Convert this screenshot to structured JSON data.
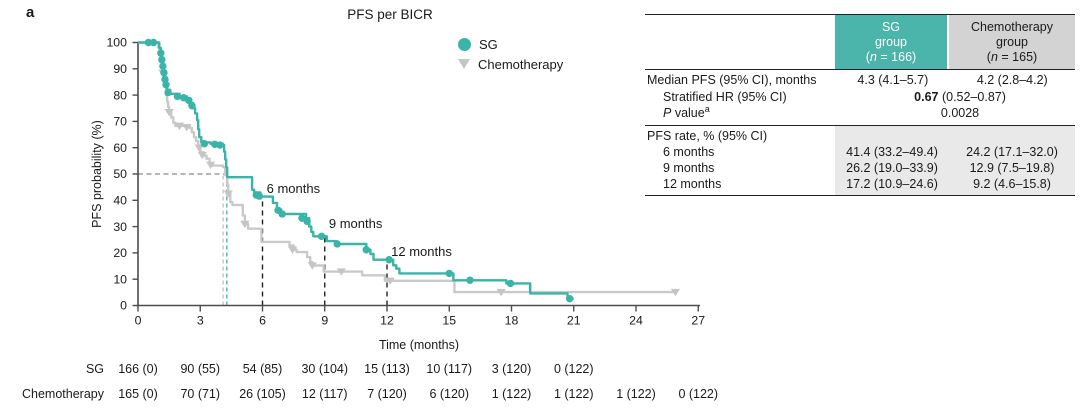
{
  "figure": {
    "panel_label": "a",
    "title": "PFS per BICR"
  },
  "legend": {
    "sg": "SG",
    "chemo": "Chemotherapy"
  },
  "axes": {
    "y_label": "PFS probability (%)",
    "x_label": "Time (months)"
  },
  "stats_table": {
    "header": {
      "sg": {
        "name": "SG",
        "group": "group",
        "n_open": "(",
        "n_italic": "n",
        "n_rest": " = 166)"
      },
      "chemo": {
        "name": "Chemotherapy",
        "group": "group",
        "n_open": "(",
        "n_italic": "n",
        "n_rest": " = 165)"
      }
    },
    "median_row": {
      "label": "Median PFS (95% CI), months",
      "sg": "4.3 (4.1–5.7)",
      "chemo": "4.2 (2.8–4.2)"
    },
    "hr_row": {
      "label": "Stratified HR (95% CI)",
      "value_bold": "0.67",
      "value_rest": " (0.52–0.87)"
    },
    "p_row": {
      "label_italic": "P",
      "label_rest": " value",
      "label_sup": "a",
      "value": "0.0028"
    },
    "rate_section": {
      "label": "PFS rate, % (95% CI)",
      "rows": [
        {
          "label": "6 months",
          "sg": "41.4 (33.2–49.4)",
          "chemo": "24.2 (17.1–32.0)"
        },
        {
          "label": "9 months",
          "sg": "26.2 (19.0–33.9)",
          "chemo": "12.9 (7.5–19.8)"
        },
        {
          "label": "12 months",
          "sg": "17.2 (10.9–24.6)",
          "chemo": "9.2 (4.6–15.8)"
        }
      ]
    }
  },
  "at_risk": {
    "sg_label": "SG",
    "chemo_label": "Chemotherapy",
    "sg": [
      "166 (0)",
      "90 (55)",
      "54 (85)",
      "30 (104)",
      "15 (113)",
      "10 (117)",
      "3 (120)",
      "0 (122)"
    ],
    "chemo": [
      "165 (0)",
      "70 (71)",
      "26 (105)",
      "12 (117)",
      "7 (120)",
      "6 (120)",
      "1 (122)",
      "1 (122)",
      "1 (122)",
      "0 (122)"
    ]
  },
  "chart_data": {
    "type": "line",
    "subtype": "kaplan-meier-step",
    "title": "PFS per BICR",
    "xlabel": "Time (months)",
    "ylabel": "PFS probability (%)",
    "xlim": [
      0,
      27
    ],
    "ylim": [
      0,
      100
    ],
    "xticks": [
      0,
      3,
      6,
      9,
      12,
      15,
      18,
      21,
      24,
      27
    ],
    "yticks": [
      0,
      10,
      20,
      30,
      40,
      50,
      60,
      70,
      80,
      90,
      100
    ],
    "grid": false,
    "legend_position": "top-right-inside",
    "series": [
      {
        "name": "Chemotherapy",
        "color": "#c9c9c9",
        "marker": "triangle-down",
        "marker_color": "#c5c5c5",
        "median_months": 4.2,
        "steps": [
          [
            0,
            100
          ],
          [
            0.95,
            100
          ],
          [
            1.05,
            97
          ],
          [
            1.1,
            94
          ],
          [
            1.15,
            91
          ],
          [
            1.2,
            88.5
          ],
          [
            1.25,
            86
          ],
          [
            1.3,
            83
          ],
          [
            1.35,
            80
          ],
          [
            1.4,
            77.5
          ],
          [
            1.45,
            75.5
          ],
          [
            1.5,
            73.5
          ],
          [
            1.6,
            71.5
          ],
          [
            1.7,
            69.5
          ],
          [
            1.8,
            68.3
          ],
          [
            2.5,
            67.5
          ],
          [
            2.6,
            65.9
          ],
          [
            2.7,
            64
          ],
          [
            2.8,
            62.5
          ],
          [
            2.9,
            60.8
          ],
          [
            3.0,
            58.3
          ],
          [
            3.15,
            57
          ],
          [
            3.3,
            55.8
          ],
          [
            3.45,
            53.9
          ],
          [
            3.6,
            53.2
          ],
          [
            4.1,
            52.6
          ],
          [
            4.2,
            49.5
          ],
          [
            4.3,
            46
          ],
          [
            4.35,
            42.5
          ],
          [
            4.45,
            39.3
          ],
          [
            4.55,
            38.2
          ],
          [
            5.05,
            34.2
          ],
          [
            5.15,
            31
          ],
          [
            5.3,
            29.2
          ],
          [
            5.95,
            24.2
          ],
          [
            7.3,
            22.8
          ],
          [
            7.5,
            21.2
          ],
          [
            7.65,
            20.3
          ],
          [
            8.15,
            18.4
          ],
          [
            8.3,
            16.5
          ],
          [
            8.4,
            15.2
          ],
          [
            8.95,
            12.9
          ],
          [
            10.8,
            11.5
          ],
          [
            11.9,
            9.4
          ],
          [
            15.25,
            5.1
          ],
          [
            25.9,
            5.1
          ]
        ],
        "censor_marks": [
          [
            1.2,
            88.5
          ],
          [
            1.5,
            73.5
          ],
          [
            2.0,
            68.3
          ],
          [
            2.35,
            67.8
          ],
          [
            2.95,
            60
          ],
          [
            3.1,
            57.2
          ],
          [
            3.5,
            53.5
          ],
          [
            4.35,
            42.5
          ],
          [
            5.15,
            31
          ],
          [
            7.45,
            21.2
          ],
          [
            8.4,
            15.2
          ],
          [
            9.8,
            12.9
          ],
          [
            12.15,
            9.4
          ],
          [
            17.5,
            5.1
          ],
          [
            25.9,
            5.1
          ]
        ]
      },
      {
        "name": "SG",
        "color": "#3ab3a8",
        "marker": "circle",
        "marker_color": "#3ab3a8",
        "median_months": 4.3,
        "steps": [
          [
            0,
            100
          ],
          [
            0.9,
            100
          ],
          [
            1.0,
            98
          ],
          [
            1.1,
            96
          ],
          [
            1.15,
            93.5
          ],
          [
            1.2,
            91
          ],
          [
            1.25,
            88.5
          ],
          [
            1.3,
            86
          ],
          [
            1.35,
            84
          ],
          [
            1.4,
            82
          ],
          [
            1.55,
            80.5
          ],
          [
            2.0,
            79.5
          ],
          [
            2.35,
            78.5
          ],
          [
            2.55,
            77
          ],
          [
            2.65,
            75
          ],
          [
            2.75,
            73
          ],
          [
            2.85,
            70.5
          ],
          [
            2.9,
            67
          ],
          [
            2.95,
            64
          ],
          [
            3.05,
            62
          ],
          [
            3.5,
            61.5
          ],
          [
            4.1,
            61
          ],
          [
            4.15,
            58.5
          ],
          [
            4.2,
            55.5
          ],
          [
            4.25,
            52.5
          ],
          [
            4.3,
            48.8
          ],
          [
            5.5,
            44
          ],
          [
            5.6,
            43
          ],
          [
            5.9,
            41.8
          ],
          [
            5.97,
            41.4
          ],
          [
            6.5,
            39
          ],
          [
            6.7,
            36.5
          ],
          [
            6.9,
            34.8
          ],
          [
            8.1,
            33.2
          ],
          [
            8.25,
            30
          ],
          [
            8.35,
            28
          ],
          [
            8.45,
            26.3
          ],
          [
            9.1,
            24.5
          ],
          [
            9.55,
            23.4
          ],
          [
            11.0,
            21.2
          ],
          [
            11.2,
            19.6
          ],
          [
            11.35,
            17.4
          ],
          [
            12.3,
            15.3
          ],
          [
            12.45,
            14
          ],
          [
            12.6,
            12.2
          ],
          [
            15.2,
            9.6
          ],
          [
            17.75,
            8.4
          ],
          [
            18.9,
            4.6
          ],
          [
            20.7,
            2.6
          ],
          [
            21,
            2.6
          ]
        ],
        "censor_marks": [
          [
            0.5,
            100
          ],
          [
            0.75,
            100
          ],
          [
            1.1,
            96
          ],
          [
            1.15,
            93.5
          ],
          [
            1.2,
            91
          ],
          [
            1.25,
            88.5
          ],
          [
            1.3,
            86
          ],
          [
            1.35,
            84
          ],
          [
            1.45,
            81
          ],
          [
            1.9,
            79.5
          ],
          [
            2.2,
            79
          ],
          [
            2.45,
            78
          ],
          [
            2.6,
            76
          ],
          [
            3.2,
            61.5
          ],
          [
            3.7,
            61.3
          ],
          [
            3.95,
            61
          ],
          [
            5.7,
            42
          ],
          [
            5.85,
            41.6
          ],
          [
            6.75,
            36.2
          ],
          [
            6.95,
            34.8
          ],
          [
            7.9,
            33.2
          ],
          [
            8.15,
            32
          ],
          [
            8.85,
            26.3
          ],
          [
            9.6,
            23.4
          ],
          [
            11.0,
            21.2
          ],
          [
            12.1,
            17.4
          ],
          [
            15.0,
            12.2
          ],
          [
            16.0,
            9.6
          ],
          [
            17.95,
            8.4
          ],
          [
            20.8,
            2.6
          ]
        ]
      }
    ],
    "median_reference": {
      "v": 50,
      "sg_t": 4.28,
      "chemo_t": 4.1
    },
    "landmarks": [
      {
        "t": 6,
        "v_top": 41.4,
        "label": "6 months",
        "label_t": 6.2,
        "label_v": 47.5
      },
      {
        "t": 9,
        "v_top": 26.2,
        "label": "9 months",
        "label_t": 9.2,
        "label_v": 34.0
      },
      {
        "t": 12,
        "v_top": 17.2,
        "label": "12 months",
        "label_t": 12.2,
        "label_v": 23.5
      }
    ],
    "at_risk_times": {
      "sg": [
        0,
        3,
        6,
        9,
        12,
        15,
        18,
        21
      ],
      "chemo": [
        0,
        3,
        6,
        9,
        12,
        15,
        18,
        21,
        24,
        27
      ]
    }
  }
}
